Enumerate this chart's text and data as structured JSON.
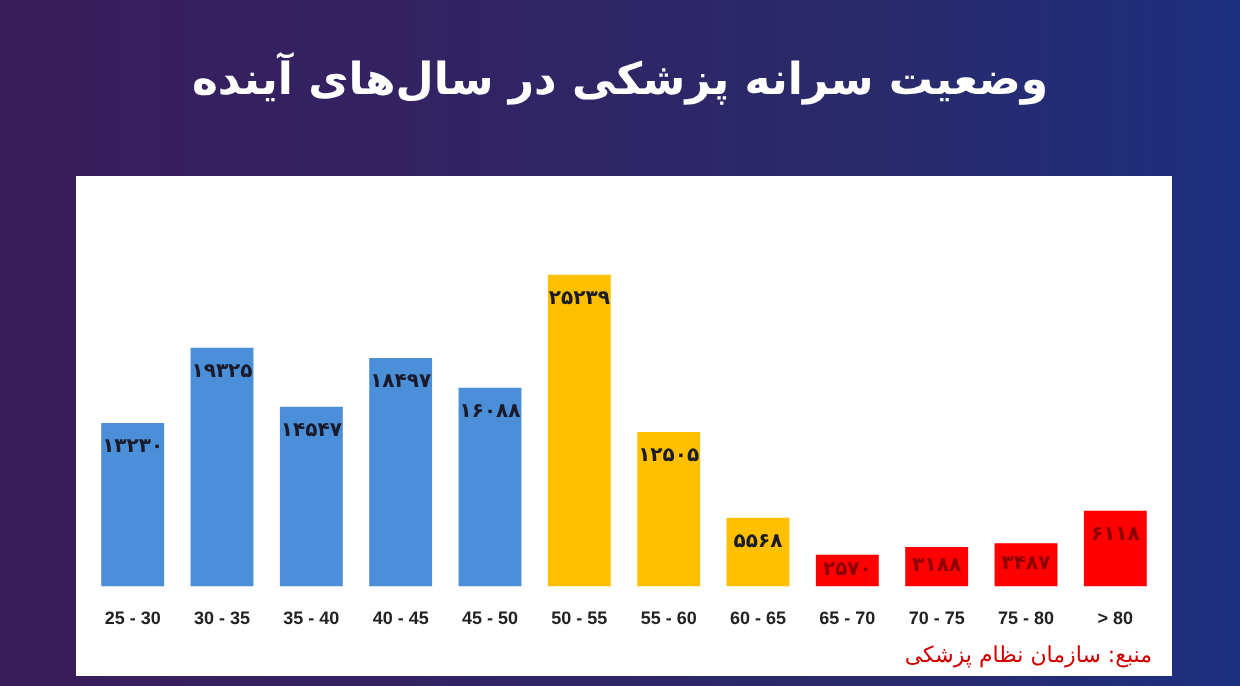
{
  "chart_data": {
    "type": "bar",
    "title": "وضعیت سرانه پزشکی در سال‌های آینده",
    "categories": [
      "25 - 30",
      "30 - 35",
      "35 - 40",
      "40 - 45",
      "45 - 50",
      "50 - 55",
      "55 - 60",
      "60 - 65",
      "65 - 70",
      "70 - 75",
      "75 - 80",
      "> 80"
    ],
    "values": [
      13230,
      19325,
      14547,
      18497,
      16088,
      25239,
      12505,
      5568,
      2570,
      3188,
      3487,
      6118
    ],
    "colors": [
      "#4a8fd8",
      "#4a8fd8",
      "#4a8fd8",
      "#4a8fd8",
      "#4a8fd8",
      "#ffc000",
      "#ffc000",
      "#ffc000",
      "#ff0000",
      "#ff0000",
      "#ff0000",
      "#ff0000"
    ],
    "value_labels": [
      "۱۳۲۳۰",
      "۱۹۳۲۵",
      "۱۴۵۴۷",
      "۱۸۴۹۷",
      "۱۶۰۸۸",
      "۲۵۲۳۹",
      "۱۲۵۰۵",
      "۵۵۶۸",
      "۲۵۷۰",
      "۳۱۸۸",
      "۳۴۸۷",
      "۶۱۱۸"
    ],
    "tick_labels": "x",
    "grid": false,
    "legend": false,
    "annotations": [
      "منبع: سازمان نظام پزشکی"
    ]
  }
}
